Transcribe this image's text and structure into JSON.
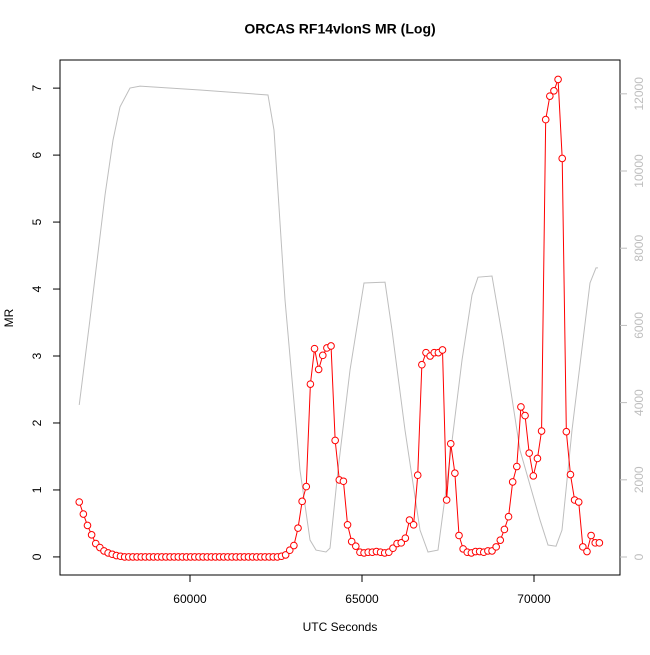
{
  "chart_data": {
    "type": "line",
    "title": "ORCAS RF14vlonS MR (Log)",
    "xlabel": "UTC Seconds",
    "ylabel": "MR",
    "xlim": [
      56221,
      72500
    ],
    "xticks": [
      60000,
      65000,
      70000
    ],
    "ylim": [
      -0.27,
      7.42
    ],
    "yticks": [
      0,
      1,
      2,
      3,
      4,
      5,
      6,
      7
    ],
    "y2lim": [
      -466,
      12876
    ],
    "y2ticks": [
      0,
      2000,
      4000,
      6000,
      8000,
      10000,
      12000
    ],
    "y2color": "#bebebe",
    "series": [
      {
        "color": "#ff0000",
        "marker": "circle",
        "x": [
          56780,
          56900,
          57020,
          57140,
          57260,
          57380,
          57500,
          57620,
          57740,
          57860,
          57980,
          58100,
          58220,
          58340,
          58460,
          58580,
          58700,
          58820,
          58940,
          59060,
          59180,
          59300,
          59420,
          59540,
          59660,
          59780,
          59900,
          60020,
          60140,
          60260,
          60380,
          60500,
          60620,
          60740,
          60860,
          60980,
          61100,
          61220,
          61340,
          61460,
          61580,
          61700,
          61820,
          61940,
          62060,
          62180,
          62300,
          62420,
          62540,
          62660,
          62780,
          62900,
          63020,
          63140,
          63260,
          63380,
          63500,
          63620,
          63740,
          63860,
          63980,
          64100,
          64220,
          64340,
          64460,
          64580,
          64700,
          64820,
          64940,
          65060,
          65180,
          65300,
          65420,
          65540,
          65660,
          65780,
          65900,
          66020,
          66140,
          66260,
          66380,
          66500,
          66620,
          66740,
          66860,
          66980,
          67100,
          67220,
          67340,
          67460,
          67580,
          67700,
          67820,
          67940,
          68060,
          68180,
          68300,
          68420,
          68540,
          68660,
          68780,
          68900,
          69020,
          69140,
          69260,
          69380,
          69500,
          69620,
          69740,
          69860,
          69980,
          70100,
          70220,
          70340,
          70460,
          70580,
          70700,
          70820,
          70940,
          71060,
          71180,
          71300,
          71420,
          71540,
          71660,
          71780,
          71900
        ],
        "values": [
          0.82,
          0.64,
          0.47,
          0.33,
          0.2,
          0.14,
          0.09,
          0.06,
          0.04,
          0.02,
          0.01,
          0,
          0,
          0,
          0,
          0,
          0,
          0,
          0,
          0,
          0,
          0,
          0,
          0,
          0,
          0,
          0,
          0,
          0,
          0,
          0,
          0,
          0,
          0,
          0,
          0,
          0,
          0,
          0,
          0,
          0,
          0,
          0,
          0,
          0,
          0,
          0,
          0,
          0,
          0.01,
          0.03,
          0.1,
          0.17,
          0.43,
          0.83,
          1.05,
          2.58,
          3.11,
          2.8,
          3.01,
          3.12,
          3.15,
          1.74,
          1.15,
          1.13,
          0.48,
          0.23,
          0.16,
          0.07,
          0.06,
          0.07,
          0.07,
          0.08,
          0.07,
          0.06,
          0.07,
          0.13,
          0.2,
          0.21,
          0.28,
          0.55,
          0.48,
          1.22,
          2.87,
          3.05,
          3.0,
          3.05,
          3.05,
          3.09,
          0.85,
          1.69,
          1.25,
          0.32,
          0.12,
          0.07,
          0.06,
          0.08,
          0.08,
          0.07,
          0.09,
          0.09,
          0.15,
          0.25,
          0.41,
          0.6,
          1.12,
          1.35,
          2.24,
          2.11,
          1.55,
          1.21,
          1.47,
          1.88,
          6.53,
          6.88,
          6.96,
          7.13,
          5.95,
          1.87,
          1.23,
          0.85,
          0.82,
          0.15,
          0.08,
          0.32,
          0.21,
          0.21
        ]
      },
      {
        "color": "#bebebe",
        "axis": "y2",
        "x": [
          56780,
          57090,
          57530,
          57762,
          57965,
          58256,
          58547,
          60291,
          62267,
          62442,
          62762,
          63198,
          63489,
          63663,
          63954,
          64070,
          64302,
          64651,
          65058,
          65669,
          65872,
          66250,
          66686,
          66919,
          67209,
          67442,
          67907,
          68198,
          68372,
          68779,
          69099,
          69593,
          70174,
          70407,
          70640,
          70814,
          71105,
          71628,
          71802,
          71860
        ],
        "values": [
          3940,
          6140,
          9380,
          10800,
          11660,
          12150,
          12200,
          12100,
          11970,
          11060,
          6660,
          2250,
          440,
          180,
          130,
          230,
          2250,
          4840,
          7100,
          7120,
          5880,
          3290,
          700,
          130,
          180,
          1740,
          5100,
          6790,
          7250,
          7280,
          5620,
          2770,
          960,
          310,
          280,
          700,
          3290,
          7100,
          7490,
          7490
        ]
      }
    ]
  }
}
